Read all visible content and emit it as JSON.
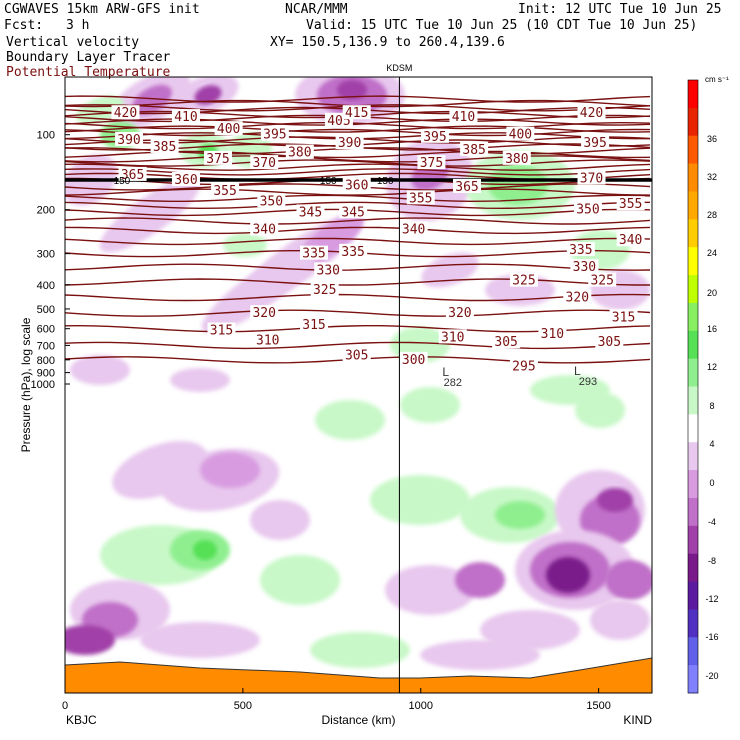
{
  "header": {
    "model": "CGWAVES 15km ARW-GFS init",
    "forecast_label": "Fcst:",
    "forecast_hours": "3 h",
    "field_1": "Vertical velocity",
    "field_2": "Boundary Layer Tracer",
    "field_3": "Potential Temperature",
    "org": "NCAR/MMM",
    "init": "Init: 12 UTC Tue 10 Jun 25",
    "valid": "Valid: 15 UTC Tue 10 Jun 25 (10 CDT Tue 10 Jun 25)",
    "xy": "XY= 150.5,136.9 to 260.4,139.6"
  },
  "chart_data": {
    "type": "cross-section",
    "station_marker": "KDSM",
    "station_marker_x_km": 940,
    "xlabel": "Distance (km)",
    "ylabel": "Pressure (hPa), log scale",
    "x_ticks": [
      "0",
      "500",
      "1000",
      "1500"
    ],
    "x_tick_values": [
      0,
      500,
      1000,
      1500
    ],
    "xlim": [
      0,
      1650
    ],
    "y_ticks": [
      "100",
      "200",
      "300",
      "400",
      "500",
      "600",
      "700",
      "800",
      "900",
      "1000"
    ],
    "y_tick_values": [
      100,
      200,
      300,
      400,
      500,
      600,
      700,
      800,
      900,
      1000
    ],
    "y_scale": "log",
    "left_station": "KBJC",
    "right_station": "KIND",
    "colorbar": {
      "units": "cm s⁻¹",
      "labels": [
        "36",
        "32",
        "28",
        "24",
        "20",
        "16",
        "12",
        "8",
        "4",
        "0",
        "-4",
        "-8",
        "-12",
        "-16",
        "-20"
      ],
      "colors": [
        "#ff0000",
        "#e82400",
        "#ff5a00",
        "#ff8c00",
        "#ffa800",
        "#ffcc00",
        "#ffff00",
        "#bfff00",
        "#88f060",
        "#55e055",
        "#8fef8f",
        "#c8f8c8",
        "#ffffff",
        "#e8c8ee",
        "#d89be0",
        "#c070c8",
        "#a040a8",
        "#7a1a8a",
        "#5c1aa0",
        "#5030c0",
        "#6060e8",
        "#8080ff"
      ]
    },
    "theta_labels": [
      {
        "text": "420",
        "x": 170,
        "p": 82
      },
      {
        "text": "410",
        "x": 340,
        "p": 85
      },
      {
        "text": "405",
        "x": 770,
        "p": 88
      },
      {
        "text": "415",
        "x": 820,
        "p": 82
      },
      {
        "text": "410",
        "x": 1120,
        "p": 85
      },
      {
        "text": "420",
        "x": 1480,
        "p": 82
      },
      {
        "text": "390",
        "x": 180,
        "p": 105
      },
      {
        "text": "400",
        "x": 460,
        "p": 95
      },
      {
        "text": "395",
        "x": 590,
        "p": 100
      },
      {
        "text": "390",
        "x": 800,
        "p": 108
      },
      {
        "text": "395",
        "x": 1040,
        "p": 102
      },
      {
        "text": "400",
        "x": 1280,
        "p": 100
      },
      {
        "text": "395",
        "x": 1490,
        "p": 108
      },
      {
        "text": "385",
        "x": 280,
        "p": 112
      },
      {
        "text": "375",
        "x": 430,
        "p": 125
      },
      {
        "text": "380",
        "x": 660,
        "p": 118
      },
      {
        "text": "385",
        "x": 1150,
        "p": 115
      },
      {
        "text": "380",
        "x": 1270,
        "p": 125
      },
      {
        "text": "365",
        "x": 190,
        "p": 145
      },
      {
        "text": "360",
        "x": 340,
        "p": 152
      },
      {
        "text": "370",
        "x": 560,
        "p": 130
      },
      {
        "text": "360",
        "x": 820,
        "p": 160
      },
      {
        "text": "375",
        "x": 1030,
        "p": 130
      },
      {
        "text": "365",
        "x": 1130,
        "p": 162
      },
      {
        "text": "370",
        "x": 1480,
        "p": 150
      },
      {
        "text": "355",
        "x": 450,
        "p": 168
      },
      {
        "text": "350",
        "x": 580,
        "p": 185
      },
      {
        "text": "345",
        "x": 690,
        "p": 205
      },
      {
        "text": "345",
        "x": 810,
        "p": 205
      },
      {
        "text": "355",
        "x": 1000,
        "p": 180
      },
      {
        "text": "350",
        "x": 1470,
        "p": 200
      },
      {
        "text": "355",
        "x": 1590,
        "p": 190
      },
      {
        "text": "340",
        "x": 560,
        "p": 240
      },
      {
        "text": "340",
        "x": 980,
        "p": 240
      },
      {
        "text": "340",
        "x": 1590,
        "p": 265
      },
      {
        "text": "335",
        "x": 700,
        "p": 300
      },
      {
        "text": "335",
        "x": 810,
        "p": 295
      },
      {
        "text": "335",
        "x": 1450,
        "p": 290
      },
      {
        "text": "330",
        "x": 740,
        "p": 350
      },
      {
        "text": "330",
        "x": 1460,
        "p": 340
      },
      {
        "text": "325",
        "x": 730,
        "p": 420
      },
      {
        "text": "325",
        "x": 1290,
        "p": 385
      },
      {
        "text": "325",
        "x": 1510,
        "p": 385
      },
      {
        "text": "320",
        "x": 560,
        "p": 520
      },
      {
        "text": "320",
        "x": 1110,
        "p": 520
      },
      {
        "text": "320",
        "x": 1440,
        "p": 450
      },
      {
        "text": "315",
        "x": 440,
        "p": 610
      },
      {
        "text": "315",
        "x": 700,
        "p": 580
      },
      {
        "text": "315",
        "x": 1570,
        "p": 540
      },
      {
        "text": "310",
        "x": 570,
        "p": 670
      },
      {
        "text": "310",
        "x": 1090,
        "p": 650
      },
      {
        "text": "310",
        "x": 1370,
        "p": 630
      },
      {
        "text": "305",
        "x": 820,
        "p": 770
      },
      {
        "text": "305",
        "x": 1240,
        "p": 680
      },
      {
        "text": "305",
        "x": 1530,
        "p": 680
      },
      {
        "text": "300",
        "x": 980,
        "p": 800
      },
      {
        "text": "295",
        "x": 1290,
        "p": 850
      }
    ],
    "tracer_labels": [
      {
        "text": "150",
        "x": 160,
        "p": 152
      },
      {
        "text": "150",
        "x": 740,
        "p": 152
      },
      {
        "text": "150",
        "x": 900,
        "p": 152
      }
    ],
    "low_markers": [
      {
        "text": "L",
        "x": 1070,
        "p": 930
      },
      {
        "text": "L",
        "x": 1440,
        "p": 920
      }
    ],
    "surface_values": [
      {
        "text": "282",
        "x": 1090,
        "p": 1000
      },
      {
        "text": "293",
        "x": 1470,
        "p": 990
      }
    ]
  }
}
